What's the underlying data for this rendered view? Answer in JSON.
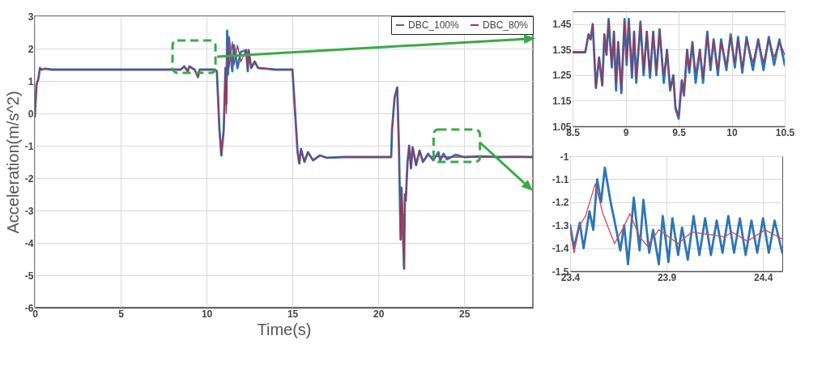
{
  "chart_data": [
    {
      "type": "line",
      "xlabel": "Time(s)",
      "ylabel": "Acceleration(m/s^2)",
      "xlim": [
        0,
        29
      ],
      "ylim": [
        -6,
        3
      ],
      "xticks": [
        0,
        5,
        10,
        15,
        20,
        25
      ],
      "yticks": [
        -6,
        -5,
        -4,
        -3,
        -2,
        -1,
        0,
        1,
        2,
        3
      ],
      "grid": true,
      "legend": "top right",
      "series": [
        {
          "name": "DBC_100%",
          "color": "#2e75b6",
          "x": [
            0,
            0.1,
            0.2,
            0.3,
            0.4,
            0.6,
            1,
            8.5,
            8.7,
            8.9,
            9.0,
            9.3,
            9.5,
            9.6,
            10.5,
            10.6,
            10.75,
            10.86,
            11.0,
            11.1,
            11.15,
            11.2,
            11.25,
            11.3,
            11.5,
            11.6,
            11.8,
            12,
            12.3,
            12.4,
            12.45,
            12.6,
            12.8,
            13,
            13.5,
            14,
            15,
            15.1,
            15.3,
            15.4,
            15.5,
            15.7,
            15.9,
            16.2,
            16.6,
            17,
            18,
            20.75,
            20.8,
            20.95,
            21.1,
            21.2,
            21.3,
            21.35,
            21.5,
            21.55,
            21.6,
            21.7,
            21.8,
            21.9,
            22.0,
            22.2,
            22.4,
            22.6,
            22.9,
            23.2,
            23.5,
            23.6,
            23.8,
            24,
            24.5,
            25,
            26,
            27,
            28,
            29
          ],
          "values": [
            -0.1,
            0.9,
            1.05,
            1.4,
            1.35,
            1.38,
            1.35,
            1.35,
            1.45,
            1.3,
            1.45,
            1.35,
            1.12,
            1.35,
            1.35,
            1.3,
            -0.5,
            -1.3,
            -0.5,
            1.4,
            0.3,
            2.55,
            1.2,
            2.35,
            1.3,
            2.1,
            1.4,
            1.9,
            1.95,
            1.3,
            1.95,
            1.4,
            1.6,
            1.4,
            1.38,
            1.35,
            1.35,
            0.5,
            -1.2,
            -1.55,
            -1.1,
            -1.5,
            -1.2,
            -1.45,
            -1.3,
            -1.37,
            -1.35,
            -1.35,
            -0.5,
            0.5,
            0.8,
            -1,
            -3.9,
            -2.3,
            -4.8,
            -2.5,
            -2.7,
            -1.5,
            -1.0,
            -1.7,
            -1.05,
            -1.6,
            -1.15,
            -1.5,
            -1.25,
            -1.45,
            -1.2,
            -1.45,
            -1.25,
            -1.42,
            -1.28,
            -1.35,
            -1.33,
            -1.35,
            -1.34,
            -1.35
          ]
        },
        {
          "name": "DBC_80%",
          "color": "#a0344f",
          "x": [
            0,
            0.1,
            0.2,
            0.3,
            0.4,
            0.6,
            1,
            8.5,
            8.7,
            8.9,
            9.0,
            9.3,
            9.5,
            9.6,
            10.5,
            10.6,
            10.75,
            10.86,
            11.0,
            11.1,
            11.15,
            11.25,
            11.3,
            11.5,
            11.6,
            11.8,
            12,
            12.3,
            12.4,
            12.45,
            12.6,
            12.8,
            13,
            13.5,
            14,
            15,
            15.1,
            15.3,
            15.4,
            15.5,
            15.7,
            15.9,
            16.2,
            16.6,
            17,
            18,
            20.75,
            20.8,
            20.95,
            21.1,
            21.2,
            21.3,
            21.35,
            21.5,
            21.55,
            21.6,
            21.7,
            21.8,
            21.9,
            22.0,
            22.2,
            22.4,
            22.6,
            22.9,
            23.2,
            23.5,
            24,
            25,
            26,
            27,
            28,
            29
          ],
          "values": [
            -0.1,
            0.9,
            1.05,
            1.4,
            1.35,
            1.38,
            1.35,
            1.35,
            1.45,
            1.3,
            1.45,
            1.35,
            1.12,
            1.35,
            1.35,
            1.3,
            -0.5,
            -1.3,
            -0.5,
            1.4,
            0,
            2.3,
            1.4,
            2.2,
            1.5,
            2.1,
            1.6,
            1.95,
            1.3,
            1.95,
            1.4,
            1.6,
            1.4,
            1.38,
            1.35,
            1.35,
            0.5,
            -1.2,
            -1.55,
            -1.1,
            -1.5,
            -1.2,
            -1.45,
            -1.3,
            -1.37,
            -1.35,
            -1.35,
            -0.5,
            0.5,
            0.8,
            -1,
            -3.9,
            -2.3,
            -4.8,
            -2.5,
            -2.7,
            -1.5,
            -1.0,
            -1.7,
            -1.05,
            -1.6,
            -1.15,
            -1.5,
            -1.3,
            -1.35,
            -1.33,
            -1.35,
            -1.35,
            -1.35,
            -1.35,
            -1.35,
            -1.35
          ]
        }
      ]
    },
    {
      "type": "line",
      "xlim": [
        8.5,
        10.5
      ],
      "ylim": [
        1.05,
        1.5
      ],
      "xticks": [
        8.5,
        9,
        9.5,
        10,
        10.5
      ],
      "yticks": [
        1.05,
        1.15,
        1.25,
        1.35,
        1.45
      ],
      "grid": true,
      "series": [
        {
          "color": "#2e75b6",
          "x": [
            8.5,
            8.62,
            8.65,
            8.67,
            8.69,
            8.72,
            8.75,
            8.78,
            8.8,
            8.82,
            8.84,
            8.87,
            8.89,
            8.91,
            8.93,
            8.96,
            8.99,
            9.01,
            9.03,
            9.06,
            9.08,
            9.1,
            9.14,
            9.17,
            9.2,
            9.23,
            9.26,
            9.29,
            9.32,
            9.36,
            9.39,
            9.42,
            9.45,
            9.47,
            9.5,
            9.53,
            9.55,
            9.58,
            9.6,
            9.63,
            9.66,
            9.7,
            9.73,
            9.77,
            9.8,
            9.83,
            9.87,
            9.9,
            9.95,
            9.99,
            10.03,
            10.06,
            10.1,
            10.14,
            10.2,
            10.25,
            10.3,
            10.35,
            10.4,
            10.45,
            10.5
          ],
          "values": [
            1.34,
            1.34,
            1.41,
            1.39,
            1.45,
            1.2,
            1.32,
            1.21,
            1.41,
            1.33,
            1.47,
            1.28,
            1.42,
            1.19,
            1.38,
            1.18,
            1.47,
            1.29,
            1.47,
            1.24,
            1.42,
            1.22,
            1.46,
            1.25,
            1.42,
            1.24,
            1.42,
            1.25,
            1.43,
            1.22,
            1.35,
            1.19,
            1.25,
            1.12,
            1.08,
            1.23,
            1.17,
            1.35,
            1.26,
            1.38,
            1.22,
            1.35,
            1.22,
            1.42,
            1.27,
            1.39,
            1.25,
            1.39,
            1.27,
            1.41,
            1.28,
            1.4,
            1.26,
            1.4,
            1.27,
            1.39,
            1.27,
            1.4,
            1.29,
            1.39,
            1.29
          ]
        },
        {
          "color": "#a0344f",
          "x": [
            8.5,
            8.62,
            8.65,
            8.67,
            8.69,
            8.72,
            8.75,
            8.78,
            8.8,
            8.82,
            8.84,
            8.87,
            8.89,
            8.91,
            8.93,
            8.96,
            8.99,
            9.01,
            9.03,
            9.06,
            9.08,
            9.1,
            9.14,
            9.17,
            9.2,
            9.23,
            9.26,
            9.29,
            9.32,
            9.36,
            9.39,
            9.42,
            9.45,
            9.47,
            9.5,
            9.53,
            9.55,
            9.58,
            9.6,
            9.63,
            9.66,
            9.7,
            9.73,
            9.77,
            9.8,
            9.83,
            9.87,
            9.9,
            9.95,
            9.99,
            10.03,
            10.06,
            10.1,
            10.14,
            10.2,
            10.25,
            10.3,
            10.35,
            10.4,
            10.45,
            10.5
          ],
          "values": [
            1.34,
            1.34,
            1.41,
            1.39,
            1.45,
            1.2,
            1.32,
            1.21,
            1.41,
            1.33,
            1.46,
            1.29,
            1.42,
            1.22,
            1.38,
            1.19,
            1.46,
            1.31,
            1.46,
            1.26,
            1.42,
            1.24,
            1.45,
            1.27,
            1.42,
            1.26,
            1.42,
            1.27,
            1.42,
            1.25,
            1.35,
            1.2,
            1.25,
            1.13,
            1.09,
            1.23,
            1.18,
            1.35,
            1.27,
            1.37,
            1.26,
            1.35,
            1.24,
            1.41,
            1.29,
            1.39,
            1.27,
            1.38,
            1.29,
            1.4,
            1.3,
            1.39,
            1.28,
            1.39,
            1.3,
            1.39,
            1.3,
            1.39,
            1.32,
            1.38,
            1.33
          ]
        }
      ]
    },
    {
      "type": "line",
      "xlim": [
        23.4,
        24.5
      ],
      "ylim": [
        -1.5,
        -1
      ],
      "xticks": [
        23.4,
        23.9,
        24.4
      ],
      "yticks": [
        -1,
        -1.1,
        -1.2,
        -1.3,
        -1.4,
        -1.5
      ],
      "grid": true,
      "series": [
        {
          "color": "#2e75b6",
          "x": [
            23.4,
            23.42,
            23.45,
            23.47,
            23.5,
            23.52,
            23.54,
            23.56,
            23.58,
            23.61,
            23.63,
            23.66,
            23.68,
            23.7,
            23.73,
            23.76,
            23.78,
            23.81,
            23.83,
            23.86,
            23.88,
            23.91,
            23.93,
            23.96,
            23.98,
            24.01,
            24.04,
            24.07,
            24.1,
            24.13,
            24.16,
            24.19,
            24.22,
            24.25,
            24.28,
            24.31,
            24.34,
            24.37,
            24.4,
            24.43,
            24.46,
            24.5
          ],
          "values": [
            -1.3,
            -1.4,
            -1.29,
            -1.4,
            -1.24,
            -1.32,
            -1.1,
            -1.2,
            -1.05,
            -1.2,
            -1.28,
            -1.41,
            -1.3,
            -1.47,
            -1.18,
            -1.41,
            -1.19,
            -1.42,
            -1.32,
            -1.47,
            -1.26,
            -1.46,
            -1.27,
            -1.43,
            -1.31,
            -1.45,
            -1.26,
            -1.43,
            -1.27,
            -1.43,
            -1.28,
            -1.42,
            -1.26,
            -1.42,
            -1.27,
            -1.43,
            -1.28,
            -1.42,
            -1.27,
            -1.42,
            -1.28,
            -1.42
          ]
        },
        {
          "color": "#d04a5a",
          "x": [
            23.4,
            23.42,
            23.45,
            23.48,
            23.53,
            23.57,
            23.63,
            23.67,
            23.71,
            23.76,
            23.8,
            23.86,
            23.96,
            24.03,
            24.2,
            24.24,
            24.32,
            24.41,
            24.5
          ],
          "values": [
            -1.32,
            -1.42,
            -1.3,
            -1.26,
            -1.12,
            -1.25,
            -1.38,
            -1.32,
            -1.25,
            -1.35,
            -1.39,
            -1.32,
            -1.38,
            -1.33,
            -1.35,
            -1.33,
            -1.37,
            -1.32,
            -1.36
          ]
        }
      ]
    }
  ]
}
